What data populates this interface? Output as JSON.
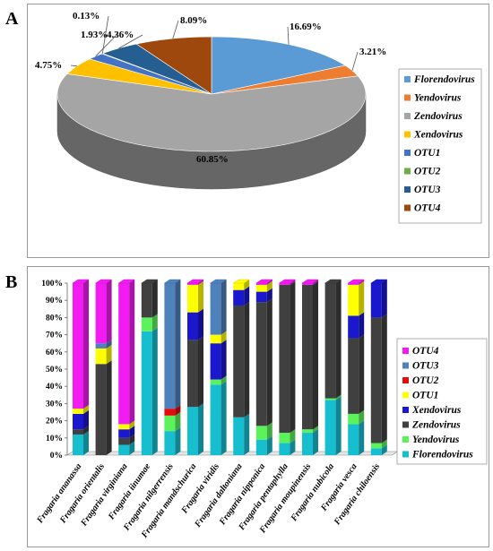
{
  "panel_labels": {
    "a": "A",
    "b": "B"
  },
  "chart_data": [
    {
      "type": "pie",
      "labels": [
        "Florendovirus",
        "Yendovirus",
        "Zendovirus",
        "Xendovirus",
        "OTU1",
        "OTU2",
        "OTU3",
        "OTU4"
      ],
      "values": [
        16.69,
        3.21,
        60.85,
        4.75,
        1.93,
        0.13,
        4.36,
        8.09
      ],
      "value_labels": [
        "16.69%",
        "3.21%",
        "60.85%",
        "4.75%",
        "1.93%",
        "0.13%",
        "4.36%",
        "8.09%"
      ],
      "colors": [
        "#5b9bd5",
        "#ed7d31",
        "#a5a5a5",
        "#ffc000",
        "#4472c4",
        "#70ad47",
        "#255e91",
        "#9e480e"
      ],
      "legend_position": "right"
    },
    {
      "type": "bar",
      "stacked": "percent",
      "categories": [
        "Fragaria ananassa",
        "Fragaria orientalis",
        "Fragaria virginiana",
        "Fragaria iinumae",
        "Fragaria nilgerrensis",
        "Fragaria mandschurica",
        "Fragaria viridis",
        "Fragaria daltoniana",
        "Fragaria nipponica",
        "Fragaria pentaphylla",
        "Fragaria moupinensis",
        "Fragaria nubicola",
        "Fragaria vesca",
        "Fragaria chiloensis"
      ],
      "series": [
        {
          "name": "Florendovirus",
          "color": "#17becf",
          "values": [
            12,
            0,
            6,
            72,
            14,
            28,
            41,
            22,
            9,
            7,
            13,
            32,
            18,
            4
          ]
        },
        {
          "name": "Yendovirus",
          "color": "#5cf25c",
          "values": [
            0,
            0,
            0,
            8,
            9,
            0,
            3,
            0,
            8,
            6,
            2,
            1,
            6,
            3
          ]
        },
        {
          "name": "Zendovirus",
          "color": "#404040",
          "values": [
            3,
            53,
            4,
            20,
            0,
            39,
            0,
            65,
            72,
            86,
            84,
            67,
            44,
            73
          ]
        },
        {
          "name": "Xendovirus",
          "color": "#1a17cc",
          "values": [
            9,
            0,
            5,
            0,
            0,
            16,
            21,
            9,
            6,
            0,
            0,
            0,
            13,
            20
          ]
        },
        {
          "name": "OTU1",
          "color": "#ffff00",
          "values": [
            3,
            9,
            3,
            0,
            0,
            16,
            5,
            4,
            4,
            0,
            0,
            0,
            18,
            0
          ]
        },
        {
          "name": "OTU2",
          "color": "#e30b0b",
          "values": [
            0,
            0,
            0,
            0,
            4,
            0,
            0,
            0,
            0,
            0,
            0,
            0,
            0,
            0
          ]
        },
        {
          "name": "OTU3",
          "color": "#4f81bd",
          "values": [
            0,
            3,
            0,
            0,
            73,
            0,
            30,
            0,
            0,
            0,
            0,
            0,
            0,
            0
          ]
        },
        {
          "name": "OTU4",
          "color": "#f21bf2",
          "values": [
            73,
            35,
            82,
            0,
            0,
            1,
            0,
            0,
            1,
            1,
            1,
            0,
            1,
            0
          ]
        }
      ],
      "ylim": [
        0,
        100
      ],
      "yticks": [
        "0%",
        "10%",
        "20%",
        "30%",
        "40%",
        "50%",
        "60%",
        "70%",
        "80%",
        "90%",
        "100%"
      ],
      "legend_order": [
        "OTU4",
        "OTU3",
        "OTU2",
        "OTU1",
        "Xendovirus",
        "Zendovirus",
        "Yendovirus",
        "Florendovirus"
      ],
      "legend_position": "right"
    }
  ]
}
